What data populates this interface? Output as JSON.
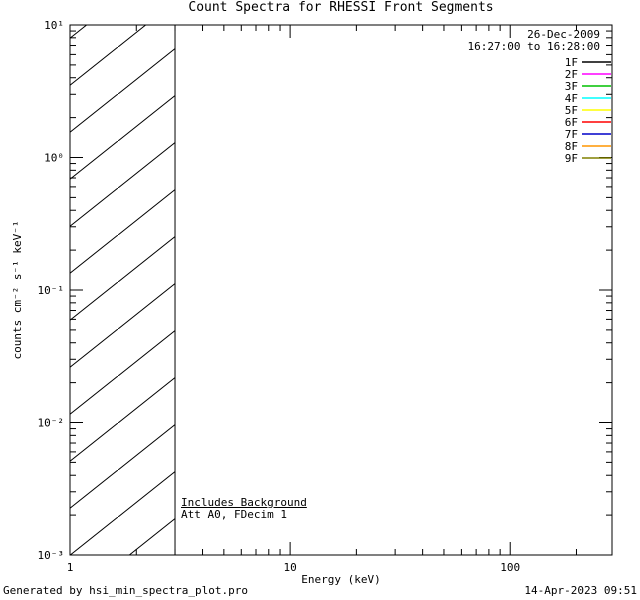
{
  "footer": {
    "left": "Generated by hsi_min_spectra_plot.pro",
    "right": "14-Apr-2023 09:51"
  },
  "chart_data": {
    "type": "line",
    "title": "Count Spectra for RHESSI Front Segments",
    "xlabel": "Energy (keV)",
    "ylabel": "counts cm⁻² s⁻¹ keV⁻¹",
    "x_scale": "log",
    "y_scale": "log",
    "xlim": [
      1,
      290
    ],
    "ylim": [
      0.001,
      10
    ],
    "x_ticks": [
      1,
      10,
      100
    ],
    "x_tick_labels": [
      "1",
      "10",
      "100"
    ],
    "y_ticks": [
      0.001,
      0.01,
      0.1,
      1,
      10
    ],
    "y_tick_labels": [
      "10⁻³",
      "10⁻²",
      "10⁻¹",
      "10⁰",
      "10¹"
    ],
    "grid": "off",
    "hatched_region": {
      "x_start": 1,
      "x_end": 3,
      "style": "diagonal-hatch"
    },
    "header_lines": [
      "26-Dec-2009",
      "16:27:00 to 16:28:00"
    ],
    "annotations": [
      "Includes Background",
      "Att A0, FDecim 1"
    ],
    "legend": {
      "position": "top-right",
      "entries": [
        {
          "label": "1F",
          "color": "#000000"
        },
        {
          "label": "2F",
          "color": "#ff00ff"
        },
        {
          "label": "3F",
          "color": "#00c000"
        },
        {
          "label": "4F",
          "color": "#00ffff"
        },
        {
          "label": "5F",
          "color": "#ffff00"
        },
        {
          "label": "6F",
          "color": "#ff0000"
        },
        {
          "label": "7F",
          "color": "#0000c8"
        },
        {
          "label": "8F",
          "color": "#ff9500"
        },
        {
          "label": "9F",
          "color": "#808000"
        }
      ]
    },
    "series": []
  }
}
